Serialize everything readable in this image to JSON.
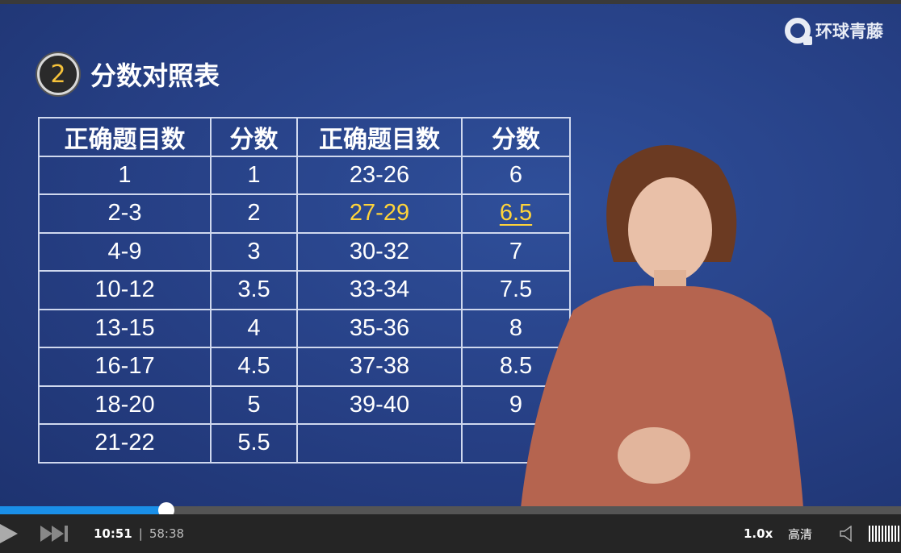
{
  "logo": {
    "text": "环球青藤"
  },
  "slide": {
    "number": "2",
    "title": "分数对照表",
    "headers": [
      "正确题目数",
      "分数",
      "正确题目数",
      "分数"
    ],
    "rows": [
      [
        "1",
        "1",
        "23-26",
        "6"
      ],
      [
        "2-3",
        "2",
        "27-29",
        "6.5"
      ],
      [
        "4-9",
        "3",
        "30-32",
        "7"
      ],
      [
        "10-12",
        "3.5",
        "33-34",
        "7.5"
      ],
      [
        "13-15",
        "4",
        "35-36",
        "8"
      ],
      [
        "16-17",
        "4.5",
        "37-38",
        "8.5"
      ],
      [
        "18-20",
        "5",
        "39-40",
        "9"
      ],
      [
        "21-22",
        "5.5",
        "",
        ""
      ]
    ],
    "highlight_color": "#ffd43a"
  },
  "player": {
    "current_time": "10:51",
    "separator": "|",
    "duration": "58:38",
    "progress_percent": 18.5,
    "speed": "1.0x",
    "quality": "高清",
    "accent": "#1a8fe8"
  }
}
